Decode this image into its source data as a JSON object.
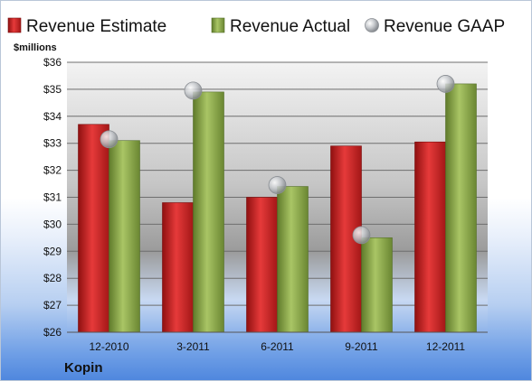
{
  "company": "Kopin",
  "chart_data": {
    "type": "bar",
    "ylabel": "$millions",
    "categories": [
      "12-2010",
      "3-2011",
      "6-2011",
      "9-2011",
      "12-2011"
    ],
    "ylim": [
      26,
      36
    ],
    "yticks": [
      "$26",
      "$27",
      "$28",
      "$29",
      "$30",
      "$31",
      "$32",
      "$33",
      "$34",
      "$35",
      "$36"
    ],
    "grid": true,
    "legend_position": "top",
    "series": [
      {
        "name": "Revenue Estimate",
        "kind": "bar",
        "color": "#d42a2a",
        "values": [
          33.7,
          30.8,
          31.0,
          32.9,
          33.05
        ]
      },
      {
        "name": "Revenue Actual",
        "kind": "bar",
        "color": "#8fae4a",
        "values": [
          33.1,
          34.9,
          31.4,
          29.5,
          35.2
        ]
      },
      {
        "name": "Revenue GAAP",
        "kind": "marker",
        "color": "#b8bcc2",
        "values": [
          33.15,
          34.95,
          31.45,
          29.6,
          35.2
        ]
      }
    ]
  }
}
